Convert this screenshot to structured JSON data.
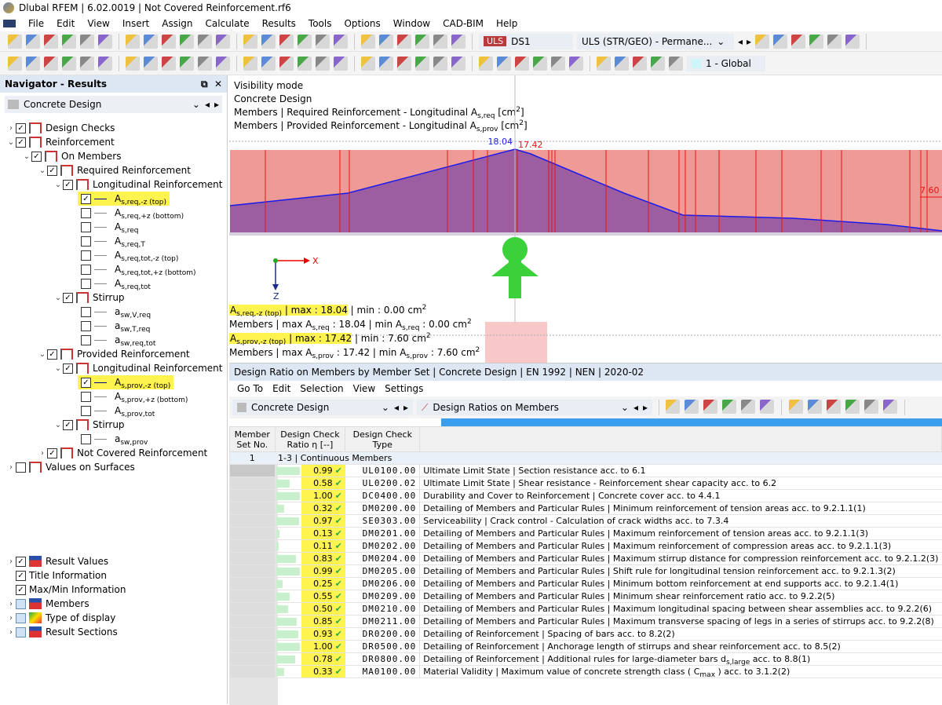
{
  "window": {
    "title": "Dlubal RFEM | 6.02.0019 | Not Covered Reinforcement.rf6"
  },
  "menu": [
    "File",
    "Edit",
    "View",
    "Insert",
    "Assign",
    "Calculate",
    "Results",
    "Tools",
    "Options",
    "Window",
    "CAD-BIM",
    "Help"
  ],
  "toolbar1": {
    "icons": [
      "new-model-icon",
      "open-icon",
      "dlubal-center-icon",
      "webservice-icon",
      "model-info-icon",
      "save-icon",
      "print-icon",
      "print-report-icon",
      "report-icon",
      "undo-icon",
      "redo-icon",
      "table-view-icon",
      "grid-view-icon",
      "color-table-icon",
      "console-icon",
      "script-icon",
      "list-icon",
      "surface-icon",
      "node-select-icon",
      "target-icon",
      "label-icon",
      "info-icon",
      "load-in-icon",
      "load-out-icon"
    ],
    "load_type": "ULS",
    "load_case": "DS1",
    "combo": "ULS (STR/GEO) - Permane...",
    "icons_right": [
      "filter-clear-icon",
      "results-eye-icon",
      "values-icon",
      "deformation-icon",
      "value-labels-icon",
      "grid-display-icon"
    ]
  },
  "toolbar2": {
    "icons": [
      "node-icon",
      "line-icon",
      "member-icon",
      "polyline-icon",
      "support-icon",
      "hinge-icon",
      "hinge-2-icon",
      "dimension-icon",
      "coordinates-icon",
      "solid-icon",
      "opening-icon",
      "frame-icon",
      "wall-icon",
      "block-icon",
      "load-icon",
      "member-load-icon",
      "line-load-icon",
      "surface-load-icon",
      "sel-member-icon",
      "sel-load-icon",
      "filter-icon",
      "section-icon",
      "film-icon",
      "diagram-icon",
      "smooth-icon",
      "cube-icon",
      "arrow-icon",
      "pencil-icon",
      "member-diagram-1-icon",
      "member-diagram-2-icon",
      "member-diagram-3-icon",
      "member-diagram-4-icon",
      "member-diagram-5-icon",
      "member-diagram-6-icon",
      "color-scale-icon"
    ],
    "coord_system": "1 - Global"
  },
  "navigator": {
    "title": "Navigator - Results",
    "selector": "Concrete Design",
    "items": [
      {
        "label": "Design Checks",
        "level": 0,
        "expand": ">",
        "checked": true,
        "icon": "rebar"
      },
      {
        "label": "Reinforcement",
        "level": 0,
        "expand": "v",
        "checked": true,
        "icon": "rebar"
      },
      {
        "label": "On Members",
        "level": 1,
        "expand": "v",
        "checked": true,
        "icon": "rebar"
      },
      {
        "label": "Required Reinforcement",
        "level": 2,
        "expand": "v",
        "checked": true,
        "icon": "rebar"
      },
      {
        "label": "Longitudinal Reinforcement",
        "level": 3,
        "expand": "v",
        "checked": true,
        "icon": "rebar"
      },
      {
        "main": "A",
        "sub": "s,req,-z (top)",
        "level": 4,
        "checked": true,
        "highlight": true,
        "line": "#00008b"
      },
      {
        "main": "A",
        "sub": "s,req,+z (bottom)",
        "level": 4,
        "checked": false
      },
      {
        "main": "A",
        "sub": "s,req",
        "level": 4,
        "checked": false
      },
      {
        "main": "A",
        "sub": "s,req,T",
        "level": 4,
        "checked": false
      },
      {
        "main": "A",
        "sub": "s,req,tot,-z (top)",
        "level": 4,
        "checked": false
      },
      {
        "main": "A",
        "sub": "s,req,tot,+z (bottom)",
        "level": 4,
        "checked": false
      },
      {
        "main": "A",
        "sub": "s,req,tot",
        "level": 4,
        "checked": false
      },
      {
        "label": "Stirrup",
        "level": 3,
        "expand": "v",
        "checked": true,
        "icon": "rebar"
      },
      {
        "main": "a",
        "sub": "sw,V,req",
        "level": 4,
        "checked": false
      },
      {
        "main": "a",
        "sub": "sw,T,req",
        "level": 4,
        "checked": false
      },
      {
        "main": "a",
        "sub": "sw,req,tot",
        "level": 4,
        "checked": false
      },
      {
        "label": "Provided Reinforcement",
        "level": 2,
        "expand": "v",
        "checked": true,
        "icon": "rebar"
      },
      {
        "label": "Longitudinal Reinforcement",
        "level": 3,
        "expand": "v",
        "checked": true,
        "icon": "rebar"
      },
      {
        "main": "A",
        "sub": "s,prov,-z (top)",
        "level": 4,
        "checked": true,
        "highlight": true,
        "line": "#00008b"
      },
      {
        "main": "A",
        "sub": "s,prov,+z (bottom)",
        "level": 4,
        "checked": false
      },
      {
        "main": "A",
        "sub": "s,prov,tot",
        "level": 4,
        "checked": false
      },
      {
        "label": "Stirrup",
        "level": 3,
        "expand": "v",
        "checked": true,
        "icon": "rebar"
      },
      {
        "main": "a",
        "sub": "sw,prov",
        "level": 4,
        "checked": false
      },
      {
        "label": "Not Covered Reinforcement",
        "level": 2,
        "expand": ">",
        "checked": true,
        "icon": "rebar"
      },
      {
        "label": "Values on Surfaces",
        "level": 0,
        "expand": ">",
        "checked": false,
        "icon": "rebar"
      }
    ],
    "display_items": [
      {
        "label": "Result Values",
        "expand": ">",
        "checked": true,
        "icon": "values"
      },
      {
        "label": "Title Information",
        "expand": "",
        "checked": true,
        "icon": "none"
      },
      {
        "label": "Max/Min Information",
        "expand": "",
        "checked": true,
        "icon": "none"
      },
      {
        "label": "Members",
        "expand": ">",
        "checked": "square",
        "icon": "member"
      },
      {
        "label": "Type of display",
        "expand": ">",
        "checked": "square",
        "icon": "color"
      },
      {
        "label": "Result Sections",
        "expand": ">",
        "checked": "square",
        "icon": "section"
      }
    ]
  },
  "viewport": {
    "info": [
      "Visibility mode",
      "Concrete Design"
    ],
    "info_req": {
      "pre": "Members | Required Reinforcement - Longitudinal A",
      "sub": "s,req",
      "post": " [cm",
      "sup": "2",
      "end": "]"
    },
    "info_prov": {
      "pre": "Members | Provided Reinforcement - Longitudinal A",
      "sub": "s,prov",
      "post": " [cm",
      "sup": "2",
      "end": "]"
    },
    "label_max_req": "18.04",
    "label_max_prov": "17.42",
    "label_min_prov": "7.60",
    "axis_x": "X",
    "axis_z": "Z",
    "summary": [
      {
        "main": "A",
        "sub": "s,req,-z (top)",
        "hl": " | max  : 18.04",
        "rest": " | min  : 0.00 cm",
        "sup": "2"
      },
      {
        "pre": "Members | max A",
        "sub": "s,req",
        "mid": " : 18.04 | min A",
        "sub2": "s,req",
        "rest": " : 0.00 cm",
        "sup": "2"
      },
      {
        "main": "A",
        "sub": "s,prov,-z (top)",
        "hl": " | max  : 17.42",
        "rest": " | min  : 7.60 cm",
        "sup": "2"
      },
      {
        "pre": "Members | max A",
        "sub": "s,prov",
        "mid": " : 17.42 | min A",
        "sub2": "s,prov",
        "rest": " : 7.60 cm",
        "sup": "2"
      }
    ],
    "colors": {
      "provided": "#ee9a96",
      "required": "#9c5ea0",
      "req_line": "#1a1aee",
      "member_lines": "#ee1111",
      "support": "#3ad13a"
    }
  },
  "table": {
    "title": "Design Ratio on Members by Member Set | Concrete Design | EN 1992 | NEN | 2020-02",
    "menu": [
      "Go To",
      "Edit",
      "Selection",
      "View",
      "Settings"
    ],
    "module": "Concrete Design",
    "result": "Design Ratios on Members",
    "tool_icons": [
      "select-prev-icon",
      "select-next-icon",
      "result-values-icon",
      "value-labels-icon",
      "table-icon",
      "table-2-icon",
      "table-highlight-icon",
      "columns-icon",
      "excel-export-icon",
      "filter-icon",
      "decimal-icon",
      "clear-select-icon"
    ],
    "columns": [
      "Member\nSet No.",
      "Design Check\nRatio η [--]",
      "Design Check\nType",
      ""
    ],
    "group": {
      "no": "1",
      "label": "1-3 | Continuous Members"
    },
    "rows": [
      {
        "ratio": 0.99,
        "value": "0.99",
        "type": "UL0100.00",
        "desc": "Ultimate Limit State | Section resistance acc. to 6.1"
      },
      {
        "ratio": 0.58,
        "value": "0.58",
        "type": "UL0200.02",
        "desc": "Ultimate Limit State | Shear resistance - Reinforcement shear capacity acc. to 6.2"
      },
      {
        "ratio": 1.0,
        "value": "1.00",
        "type": "DC0400.00",
        "desc": "Durability and Cover to Reinforcement | Concrete cover acc. to 4.4.1"
      },
      {
        "ratio": 0.32,
        "value": "0.32",
        "type": "DM0200.00",
        "desc": "Detailing of Members and Particular Rules | Minimum reinforcement of tension areas acc. to 9.2.1.1(1)"
      },
      {
        "ratio": 0.97,
        "value": "0.97",
        "type": "SE0303.00",
        "desc": "Serviceability | Crack control - Calculation of crack widths acc. to 7.3.4"
      },
      {
        "ratio": 0.13,
        "value": "0.13",
        "type": "DM0201.00",
        "desc": "Detailing of Members and Particular Rules | Maximum reinforcement of tension areas acc. to 9.2.1.1(3)"
      },
      {
        "ratio": 0.11,
        "value": "0.11",
        "type": "DM0202.00",
        "desc": "Detailing of Members and Particular Rules | Maximum reinforcement of compression areas acc. to 9.2.1.1(3)"
      },
      {
        "ratio": 0.83,
        "value": "0.83",
        "type": "DM0204.00",
        "desc": "Detailing of Members and Particular Rules | Maximum stirrup distance for compression reinforcement acc. to 9.2.1.2(3)"
      },
      {
        "ratio": 0.99,
        "value": "0.99",
        "type": "DM0205.00",
        "desc": "Detailing of Members and Particular Rules | Shift rule for longitudinal tension reinforcement acc. to 9.2.1.3(2)"
      },
      {
        "ratio": 0.25,
        "value": "0.25",
        "type": "DM0206.00",
        "desc": "Detailing of Members and Particular Rules | Minimum bottom reinforcement at end supports acc. to 9.2.1.4(1)"
      },
      {
        "ratio": 0.55,
        "value": "0.55",
        "type": "DM0209.00",
        "desc": "Detailing of Members and Particular Rules | Minimum shear reinforcement ratio acc. to 9.2.2(5)"
      },
      {
        "ratio": 0.5,
        "value": "0.50",
        "type": "DM0210.00",
        "desc": "Detailing of Members and Particular Rules | Maximum longitudinal spacing between shear assemblies acc. to 9.2.2(6)"
      },
      {
        "ratio": 0.85,
        "value": "0.85",
        "type": "DM0211.00",
        "desc": "Detailing of Members and Particular Rules | Maximum transverse spacing of legs in a series of stirrups acc. to 9.2.2(8)"
      },
      {
        "ratio": 0.93,
        "value": "0.93",
        "type": "DR0200.00",
        "desc": "Detailing of Reinforcement | Spacing of bars acc. to 8.2(2)"
      },
      {
        "ratio": 1.0,
        "value": "1.00",
        "type": "DR0500.00",
        "desc": "Detailing of Reinforcement | Anchorage length of stirrups and shear reinforcement acc. to 8.5(2)"
      },
      {
        "ratio": 0.78,
        "value": "0.78",
        "type": "DR0800.00",
        "desc": "Detailing of Reinforcement | Additional rules for large-diameter bars d",
        "desc_sub": "s,large",
        "desc_post": " acc. to 8.8(1)"
      },
      {
        "ratio": 0.33,
        "value": "0.33",
        "type": "MA0100.00",
        "desc": "Material Validity | Maximum value of concrete strength class ( C",
        "desc_sub": "max",
        "desc_post": " ) acc. to 3.1.2(2)"
      }
    ],
    "check_mark": "✔"
  }
}
